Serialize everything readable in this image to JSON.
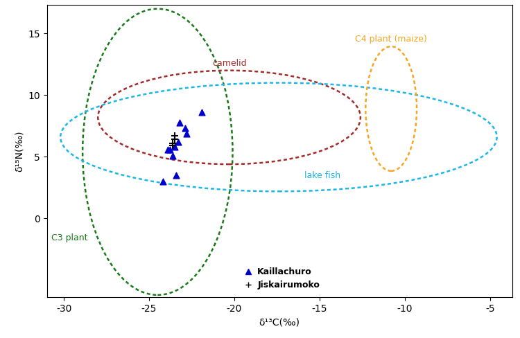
{
  "chart_data": {
    "type": "scatter",
    "x_label": "δ¹³C(‰)",
    "y_label": "δ¹⁵N(‰)",
    "xlim": [
      -31,
      -3.7
    ],
    "ylim": [
      -6.4,
      17.3
    ],
    "xticks": [
      -30,
      -25,
      -20,
      -15,
      -10,
      -5
    ],
    "yticks": [
      0,
      5,
      10,
      15
    ],
    "legend": "lower center",
    "regions": [
      {
        "name": "C3 plant",
        "color": "#1a7a1a",
        "center": [
          -24.5,
          5.4
        ],
        "width": 8.8,
        "height": 23.2
      },
      {
        "name": "camelid",
        "color": "#a52a2a",
        "center": [
          -20.3,
          8.2
        ],
        "width": 15.4,
        "height": 7.6
      },
      {
        "name": "lake fish",
        "color": "#1ab8e8",
        "center": [
          -17.4,
          6.6
        ],
        "width": 25.6,
        "height": 8.8
      },
      {
        "name": "C4 plant (maize)",
        "color": "#f5a623",
        "center": [
          -10.8,
          8.9
        ],
        "width": 3.0,
        "height": 10.1
      }
    ],
    "series": [
      {
        "name": "Kaillachuro",
        "color": "#0000cc",
        "marker": "triangle",
        "x": [
          -24.2,
          -23.4,
          -23.8,
          -23.9,
          -23.6,
          -23.5,
          -23.3,
          -23.2,
          -22.9,
          -22.8,
          -21.9
        ],
        "values": [
          3.0,
          3.5,
          5.6,
          5.6,
          5.1,
          5.8,
          6.2,
          7.8,
          7.3,
          6.9,
          8.6
        ]
      },
      {
        "name": "Jiskairumoko",
        "color": "#000000",
        "marker": "plus",
        "x": [
          -23.5,
          -23.5,
          -23.6,
          -23.6
        ],
        "values": [
          6.7,
          6.4,
          6.1,
          5.9
        ]
      }
    ]
  }
}
